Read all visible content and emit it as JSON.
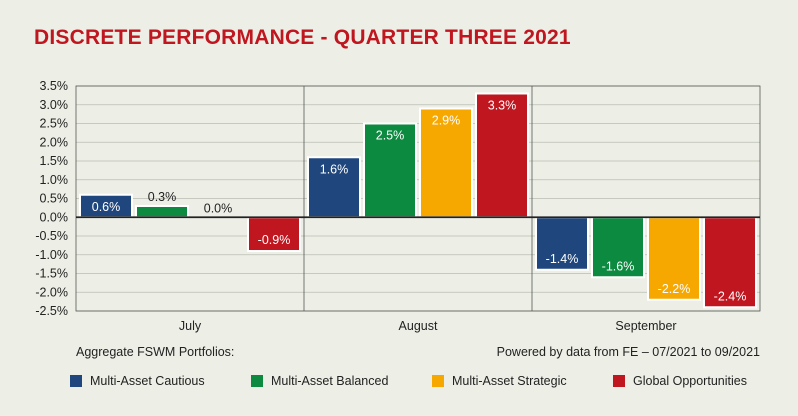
{
  "chart_data": {
    "type": "bar",
    "title": "DISCRETE PERFORMANCE - QUARTER THREE 2021",
    "categories": [
      "July",
      "August",
      "September"
    ],
    "ylim": [
      -2.5,
      3.5
    ],
    "yticks": [
      "3.5%",
      "3.0%",
      "2.5%",
      "2.0%",
      "1.5%",
      "1.0%",
      "0.5%",
      "0.0%",
      "-0.5%",
      "-1.0%",
      "-1.5%",
      "-2.0%",
      "-2.5%"
    ],
    "ytick_values": [
      3.5,
      3.0,
      2.5,
      2.0,
      1.5,
      1.0,
      0.5,
      0.0,
      -0.5,
      -1.0,
      -1.5,
      -2.0,
      -2.5
    ],
    "grid": true,
    "series": [
      {
        "name": "Multi-Asset Cautious",
        "color": "#1f477d",
        "values": [
          0.6,
          1.6,
          -1.4
        ],
        "labels": [
          "0.6%",
          "1.6%",
          "-1.4%"
        ]
      },
      {
        "name": "Multi-Asset Balanced",
        "color": "#0c8a3f",
        "values": [
          0.3,
          2.5,
          -1.6
        ],
        "labels": [
          "0.3%",
          "2.5%",
          "-1.6%"
        ]
      },
      {
        "name": "Multi-Asset Strategic",
        "color": "#f6a800",
        "values": [
          0.0,
          2.9,
          -2.2
        ],
        "labels": [
          "0.0%",
          "2.9%",
          "-2.2%"
        ]
      },
      {
        "name": "Global Opportunities",
        "color": "#c0161f",
        "values": [
          -0.9,
          3.3,
          -2.4
        ],
        "labels": [
          "-0.9%",
          "3.3%",
          "-2.4%"
        ]
      }
    ],
    "legend_position": "bottom"
  },
  "footer": {
    "left": "Aggregate FSWM Portfolios:",
    "right": "Powered by data from FE – 07/2021 to 09/2021"
  }
}
